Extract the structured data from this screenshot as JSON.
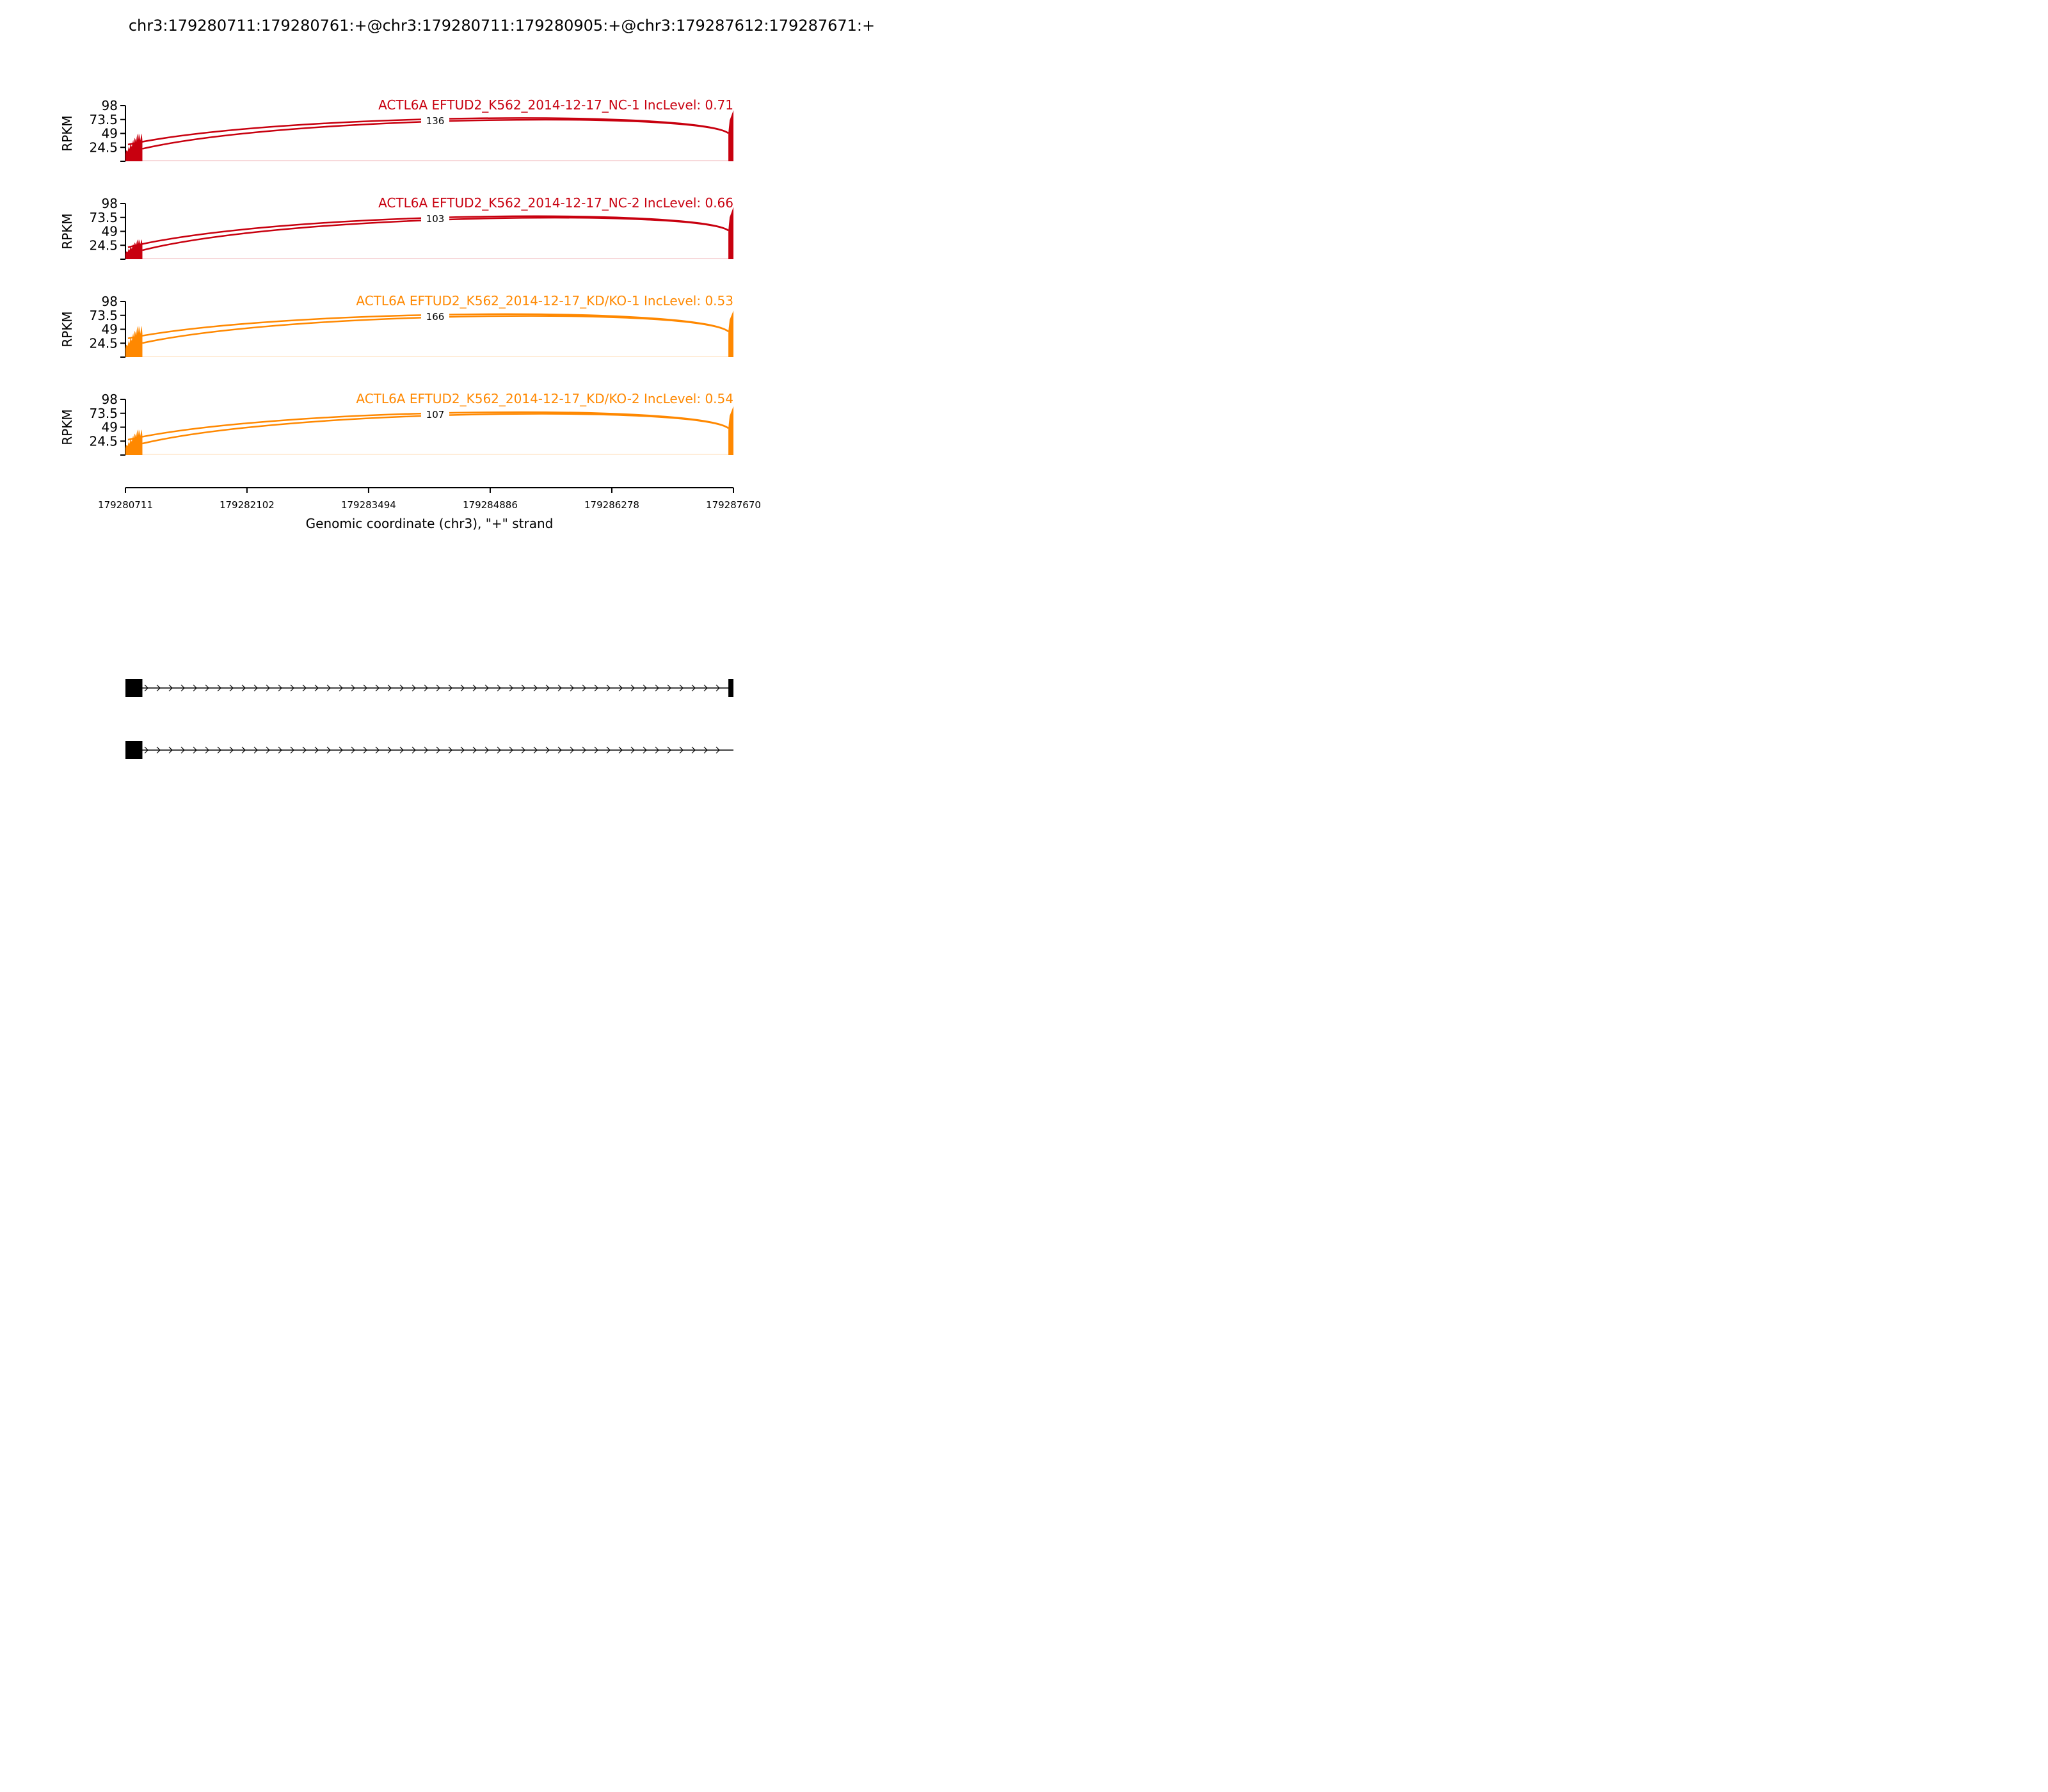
{
  "title": "chr3:179280711:179280761:+@chr3:179280711:179280905:+@chr3:179287612:179287671:+",
  "chart_data": {
    "type": "sashimi",
    "x_axis": {
      "label": "Genomic coordinate (chr3), \"+\" strand",
      "range": [
        179280711,
        179287670
      ],
      "ticks": [
        "179280711",
        "179282102",
        "179283494",
        "179284886",
        "179286278",
        "179287670"
      ]
    },
    "y_axis": {
      "label": "RPKM",
      "range": [
        0,
        98
      ],
      "ticks": [
        "98",
        "73.5",
        "49",
        "24.5"
      ]
    },
    "tracks": [
      {
        "name": "ACTL6A EFTUD2_K562_2014-12-17_NC-1 IncLevel: 0.71",
        "color": "#C8000F",
        "junction_count": "136",
        "exon1_peak": 49,
        "exon2_peak": 90
      },
      {
        "name": "ACTL6A EFTUD2_K562_2014-12-17_NC-2 IncLevel: 0.66",
        "color": "#C8000F",
        "junction_count": "103",
        "exon1_peak": 35,
        "exon2_peak": 92
      },
      {
        "name": "ACTL6A EFTUD2_K562_2014-12-17_KD/KO-1 IncLevel: 0.53",
        "color": "#FF8800",
        "junction_count": "166",
        "exon1_peak": 55,
        "exon2_peak": 82
      },
      {
        "name": "ACTL6A EFTUD2_K562_2014-12-17_KD/KO-2 IncLevel: 0.54",
        "color": "#FF8800",
        "junction_count": "107",
        "exon1_peak": 45,
        "exon2_peak": 86
      }
    ],
    "isoforms": [
      {
        "exons": [
          [
            179280711,
            179280905
          ],
          [
            179287612,
            179287670
          ]
        ]
      },
      {
        "exons": [
          [
            179280711,
            179280905
          ]
        ]
      }
    ]
  }
}
